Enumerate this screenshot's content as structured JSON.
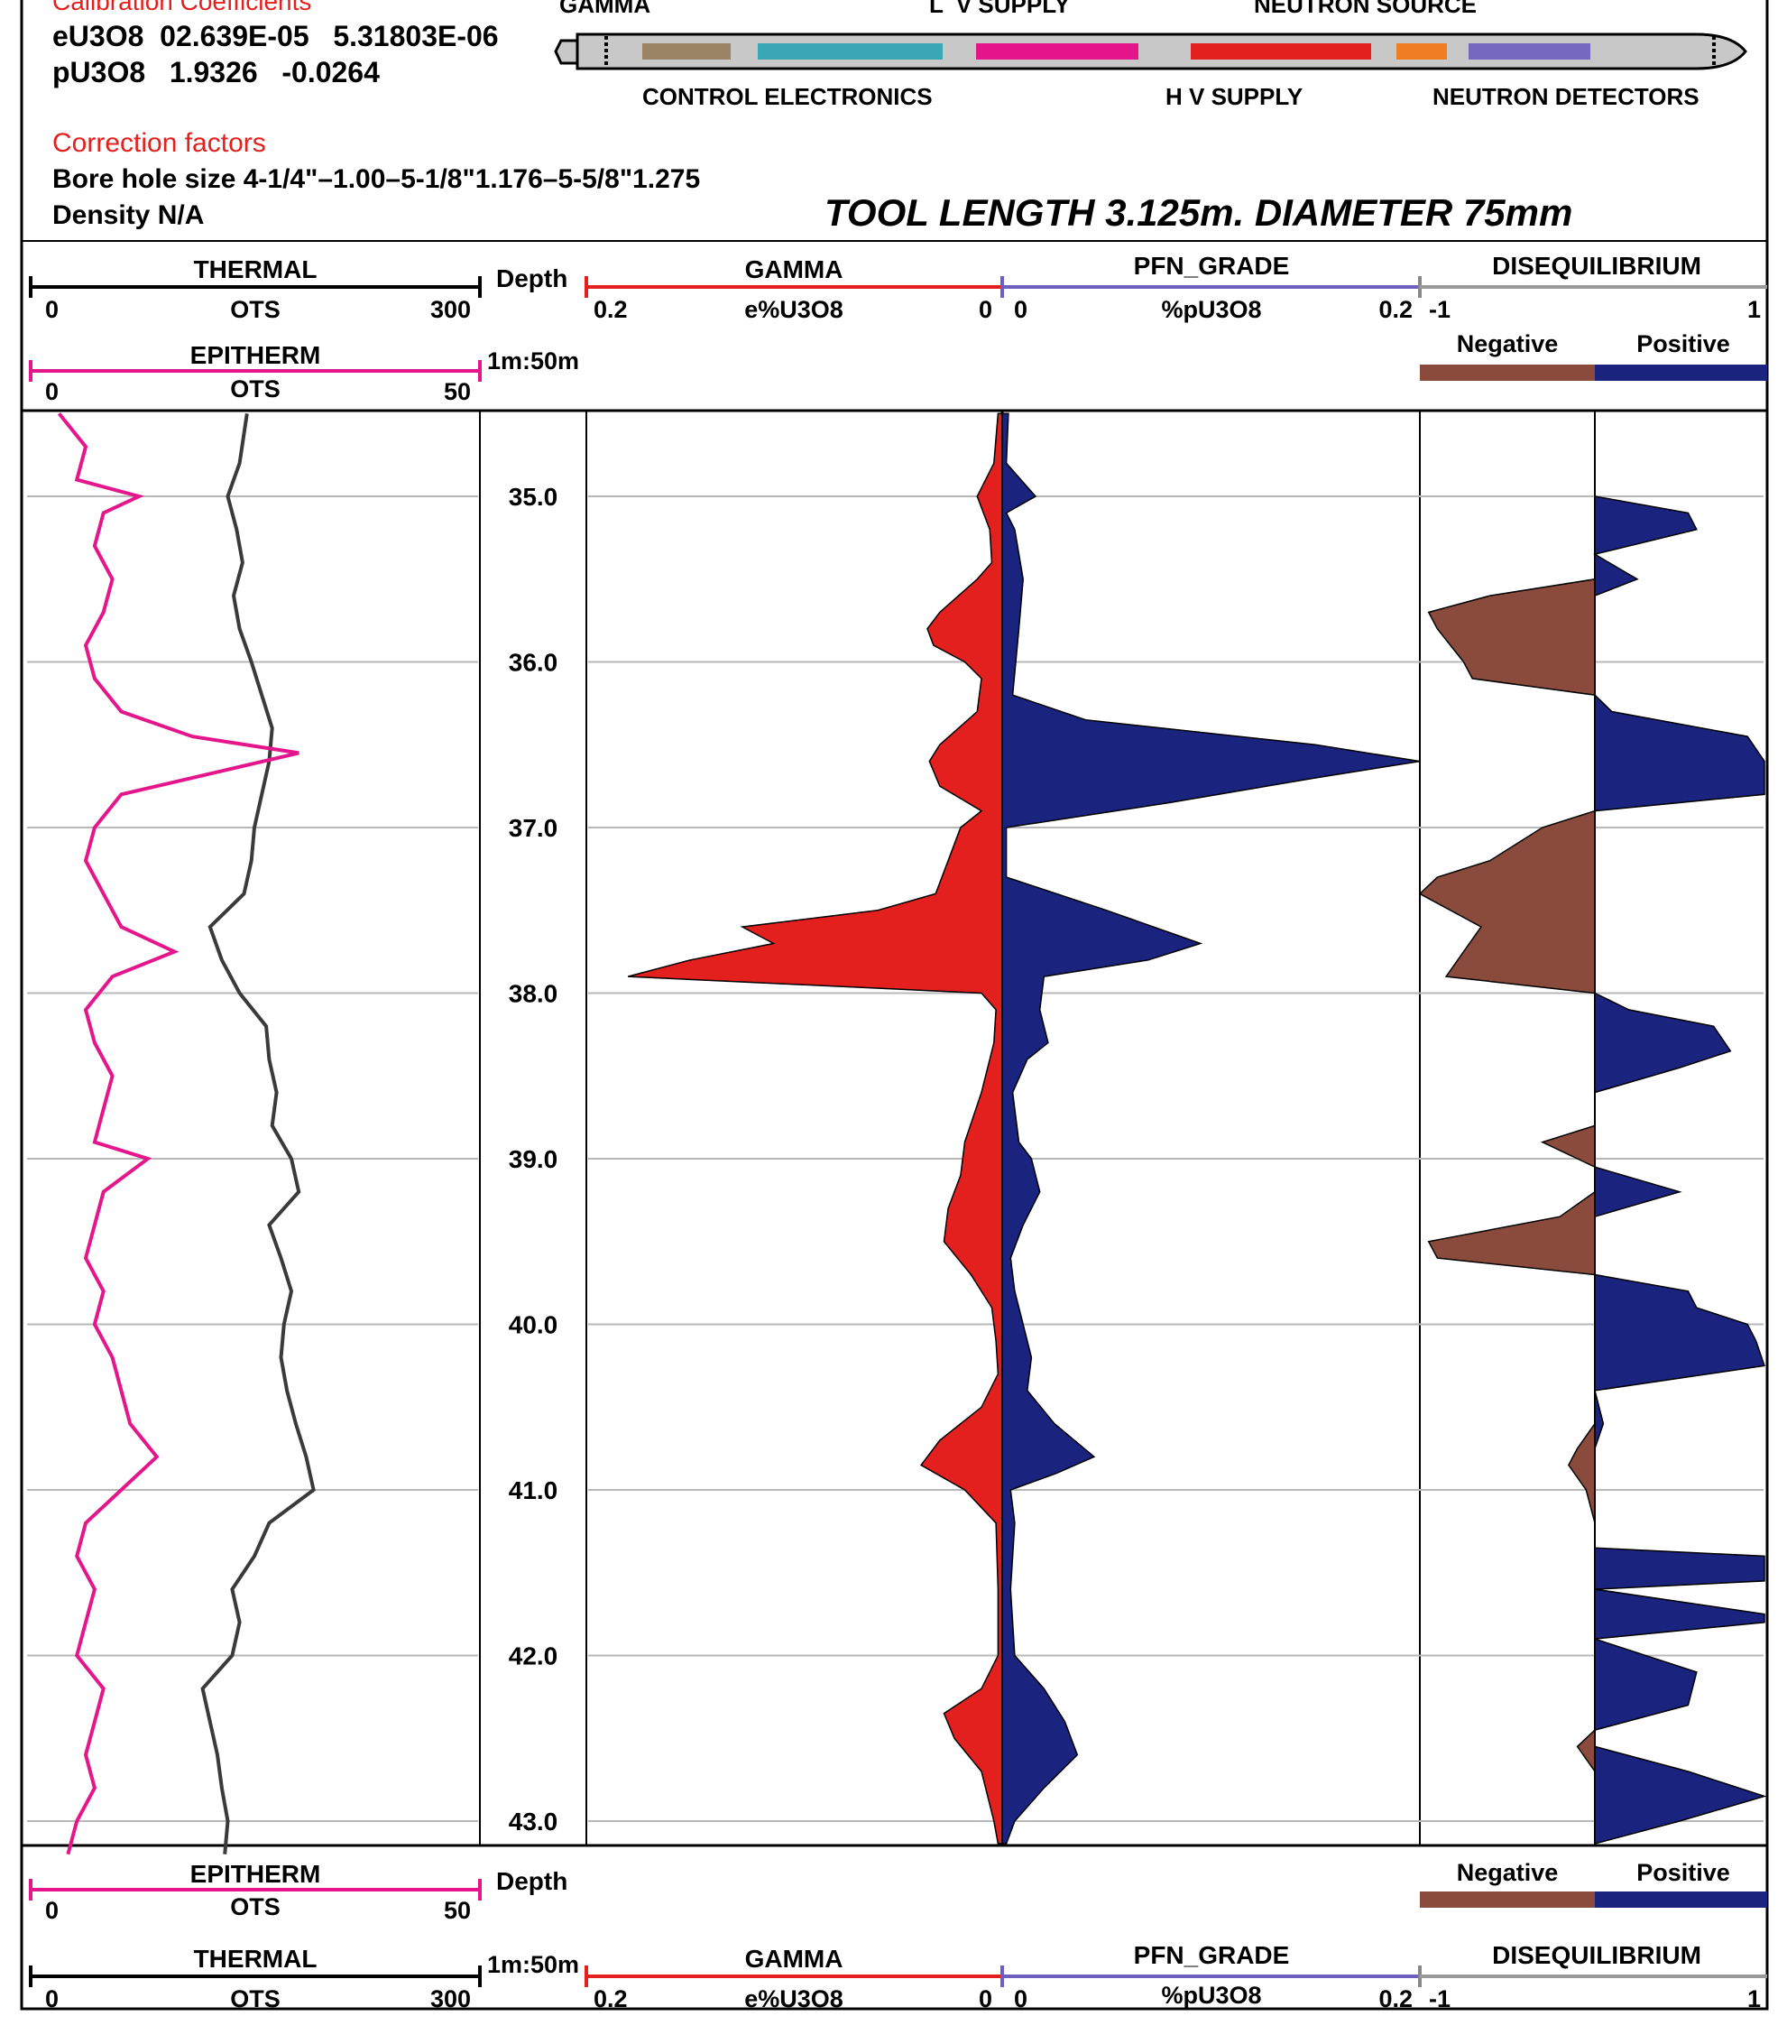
{
  "calibration": {
    "heading": "Calibration Coefficients",
    "line1": "eU3O8  02.639E-05   5.31803E-06",
    "line2": "pU3O8   1.9326   -0.0264"
  },
  "correction": {
    "heading": "Correction factors",
    "bore": "Bore hole size 4-1/4\"–1.00–5-1/8\"1.176–5-5/8\"1.275",
    "density": "Density N/A"
  },
  "tool": {
    "labels_top": [
      "GAMMA",
      "L  V SUPPLY",
      "NEUTRON SOURCE"
    ],
    "labels_bottom": [
      "CONTROL ELECTRONICS",
      "H V SUPPLY",
      "NEUTRON DETECTORS"
    ],
    "length_text": "TOOL LENGTH 3.125m.  DIAMETER 75mm",
    "segment_colors": [
      "#9b8465",
      "#3aa7b7",
      "#e5168c",
      "#e4201e",
      "#ef7d22",
      "#7667c0"
    ]
  },
  "tracks": {
    "thermal": {
      "name": "THERMAL",
      "unit": "OTS",
      "min": "0",
      "max": "300",
      "color": "#000000"
    },
    "epitherm": {
      "name": "EPITHERM",
      "unit": "OTS",
      "min": "0",
      "max": "50",
      "color": "#e5168c"
    },
    "depth": {
      "name": "Depth",
      "scale": "1m:50m"
    },
    "gamma": {
      "name": "GAMMA",
      "unit": "e%U3O8",
      "left": "0.2",
      "right": "0",
      "color": "#e4201e"
    },
    "pfn": {
      "name": "PFN_GRADE",
      "unit": "%pU3O8",
      "left": "0",
      "right": "0.2",
      "color": "#6c5fc0"
    },
    "diseq": {
      "name": "DISEQUILIBRIUM",
      "left": "-1",
      "right": "1",
      "negative": "Negative",
      "positive": "Positive",
      "neg_color": "#8a4a3c",
      "pos_color": "#1a237e"
    }
  },
  "chart_data": {
    "type": "area",
    "depth_axis": {
      "label": "Depth",
      "unit": "m",
      "range": [
        34.5,
        43.2
      ],
      "ticks": [
        "35.0",
        "36.0",
        "37.0",
        "38.0",
        "39.0",
        "40.0",
        "41.0",
        "42.0",
        "43.0"
      ]
    },
    "series": [
      {
        "name": "THERMAL",
        "unit": "OTS",
        "range": [
          0,
          300
        ],
        "depth": [
          34.5,
          34.8,
          35.0,
          35.2,
          35.4,
          35.6,
          35.8,
          36.0,
          36.2,
          36.4,
          36.6,
          36.8,
          37.0,
          37.2,
          37.4,
          37.6,
          37.8,
          38.0,
          38.2,
          38.4,
          38.6,
          38.8,
          39.0,
          39.2,
          39.4,
          39.6,
          39.8,
          40.0,
          40.2,
          40.4,
          40.6,
          40.8,
          41.0,
          41.2,
          41.4,
          41.6,
          41.8,
          42.0,
          42.2,
          42.4,
          42.6,
          42.8,
          43.0,
          43.2
        ],
        "values": [
          145,
          140,
          132,
          138,
          142,
          136,
          140,
          148,
          155,
          162,
          160,
          155,
          150,
          148,
          143,
          120,
          128,
          140,
          158,
          160,
          165,
          162,
          175,
          180,
          160,
          168,
          175,
          170,
          168,
          172,
          178,
          185,
          190,
          160,
          150,
          135,
          140,
          135,
          115,
          120,
          125,
          128,
          132,
          130
        ]
      },
      {
        "name": "EPITHERM",
        "unit": "OTS",
        "range": [
          0,
          50
        ],
        "depth": [
          34.5,
          34.7,
          34.9,
          35.0,
          35.1,
          35.3,
          35.5,
          35.7,
          35.9,
          36.1,
          36.3,
          36.45,
          36.55,
          36.65,
          36.8,
          37.0,
          37.2,
          37.4,
          37.6,
          37.75,
          37.9,
          38.1,
          38.3,
          38.5,
          38.7,
          38.9,
          39.0,
          39.2,
          39.4,
          39.6,
          39.8,
          40.0,
          40.2,
          40.4,
          40.6,
          40.8,
          41.0,
          41.2,
          41.4,
          41.6,
          41.8,
          42.0,
          42.2,
          42.4,
          42.6,
          42.8,
          43.0,
          43.2
        ],
        "values": [
          3,
          6,
          5,
          12,
          8,
          7,
          9,
          8,
          6,
          7,
          10,
          18,
          30,
          22,
          10,
          7,
          6,
          8,
          10,
          16,
          9,
          6,
          7,
          9,
          8,
          7,
          13,
          8,
          7,
          6,
          8,
          7,
          9,
          10,
          11,
          14,
          10,
          6,
          5,
          7,
          6,
          5,
          8,
          7,
          6,
          7,
          5,
          4
        ]
      },
      {
        "name": "GAMMA",
        "unit": "e%U3O8",
        "range": [
          0.2,
          0
        ],
        "depth": [
          34.5,
          34.8,
          35.0,
          35.2,
          35.4,
          35.5,
          35.7,
          35.8,
          35.9,
          36.0,
          36.1,
          36.3,
          36.5,
          36.6,
          36.75,
          36.9,
          37.0,
          37.2,
          37.4,
          37.5,
          37.6,
          37.7,
          37.8,
          37.9,
          38.0,
          38.1,
          38.3,
          38.6,
          38.9,
          39.1,
          39.3,
          39.5,
          39.7,
          39.9,
          40.1,
          40.3,
          40.5,
          40.7,
          40.85,
          41.0,
          41.2,
          41.6,
          42.0,
          42.2,
          42.35,
          42.5,
          42.7,
          43.0,
          43.2
        ],
        "values": [
          0.002,
          0.004,
          0.012,
          0.006,
          0.005,
          0.012,
          0.03,
          0.036,
          0.033,
          0.018,
          0.01,
          0.012,
          0.03,
          0.035,
          0.03,
          0.01,
          0.02,
          0.026,
          0.032,
          0.06,
          0.125,
          0.11,
          0.15,
          0.18,
          0.01,
          0.003,
          0.004,
          0.01,
          0.018,
          0.02,
          0.026,
          0.028,
          0.015,
          0.005,
          0.003,
          0.002,
          0.01,
          0.03,
          0.039,
          0.018,
          0.003,
          0.002,
          0.002,
          0.01,
          0.028,
          0.023,
          0.01,
          0.004,
          0.002
        ]
      },
      {
        "name": "PFN_GRADE",
        "unit": "%pU3O8",
        "range": [
          0,
          0.2
        ],
        "depth": [
          34.5,
          34.8,
          35.0,
          35.1,
          35.2,
          35.5,
          35.8,
          36.2,
          36.35,
          36.5,
          36.6,
          36.7,
          36.85,
          37.0,
          37.3,
          37.5,
          37.7,
          37.8,
          37.9,
          38.1,
          38.3,
          38.4,
          38.6,
          38.9,
          39.0,
          39.2,
          39.4,
          39.6,
          39.8,
          40.0,
          40.2,
          40.4,
          40.6,
          40.8,
          40.9,
          41.0,
          41.2,
          41.6,
          42.0,
          42.2,
          42.4,
          42.6,
          42.8,
          43.0,
          43.2
        ],
        "values": [
          0.003,
          0.002,
          0.016,
          0.002,
          0.006,
          0.01,
          0.008,
          0.005,
          0.04,
          0.15,
          0.2,
          0.15,
          0.08,
          0.002,
          0.002,
          0.05,
          0.095,
          0.07,
          0.02,
          0.018,
          0.022,
          0.012,
          0.005,
          0.008,
          0.014,
          0.018,
          0.01,
          0.004,
          0.006,
          0.01,
          0.014,
          0.012,
          0.025,
          0.044,
          0.026,
          0.004,
          0.006,
          0.004,
          0.006,
          0.02,
          0.03,
          0.036,
          0.02,
          0.006,
          0.002
        ]
      },
      {
        "name": "DISEQUILIBRIUM",
        "range": [
          -1,
          1
        ],
        "depth": [
          34.5,
          35.0,
          35.1,
          35.2,
          35.35,
          35.5,
          35.6,
          35.7,
          35.8,
          36.0,
          36.1,
          36.2,
          36.3,
          36.45,
          36.6,
          36.8,
          36.9,
          37.0,
          37.2,
          37.3,
          37.4,
          37.6,
          37.75,
          37.9,
          38.0,
          38.1,
          38.2,
          38.35,
          38.45,
          38.6,
          38.8,
          38.9,
          39.0,
          39.05,
          39.2,
          39.35,
          39.5,
          39.6,
          39.7,
          39.8,
          39.9,
          40.0,
          40.1,
          40.25,
          40.4,
          40.6,
          40.75,
          40.85,
          41.0,
          41.2,
          41.35,
          41.4,
          41.55,
          41.6,
          41.75,
          41.8,
          41.9,
          42.1,
          42.3,
          42.45,
          42.55,
          42.7,
          42.85,
          43.0,
          43.2
        ],
        "values": [
          0,
          0,
          0.55,
          0.6,
          0,
          0.25,
          -0.6,
          -0.95,
          -0.9,
          -0.75,
          -0.7,
          0,
          0.1,
          0.9,
          1.0,
          1.0,
          0,
          -0.3,
          -0.6,
          -0.9,
          -1.0,
          -0.65,
          -0.75,
          -0.85,
          0,
          0.2,
          0.7,
          0.8,
          0.5,
          0,
          0,
          -0.3,
          -0.1,
          0,
          0.5,
          -0.2,
          -0.95,
          -0.9,
          0,
          0.55,
          0.6,
          0.9,
          0.95,
          1.0,
          0,
          0.05,
          -0.1,
          -0.15,
          -0.05,
          0,
          0,
          1.0,
          1.0,
          0,
          1.0,
          1.0,
          0,
          0.6,
          0.55,
          0,
          -0.1,
          0.55,
          1.0,
          0.5,
          0
        ]
      }
    ]
  }
}
